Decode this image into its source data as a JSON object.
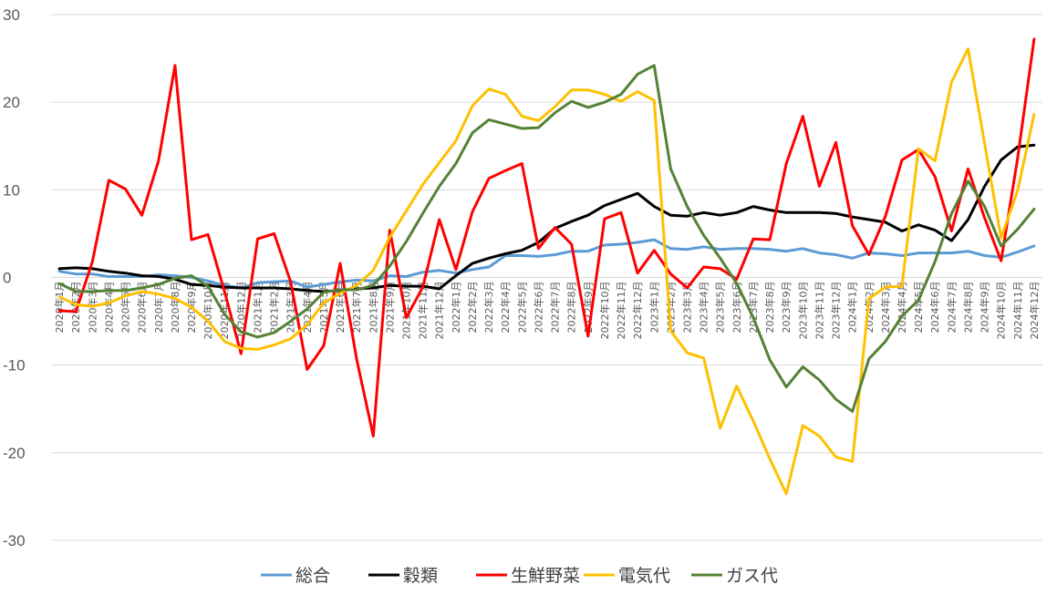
{
  "chart_data": {
    "type": "line",
    "title": "",
    "xlabel": "",
    "ylabel": "",
    "ylim": [
      -30,
      30
    ],
    "yticks": [
      30,
      20,
      10,
      0,
      -10,
      -20,
      -30
    ],
    "grid": "horizontal",
    "legend_position": "bottom",
    "categories": [
      "2020年1月",
      "2020年2月",
      "2020年3月",
      "2020年4月",
      "2020年5月",
      "2020年6月",
      "2020年7月",
      "2020年8月",
      "2020年9月",
      "2020年10月",
      "2020年11月",
      "2020年12月",
      "2021年1月",
      "2021年2月",
      "2021年3月",
      "2021年4月",
      "2021年5月",
      "2021年6月",
      "2021年7月",
      "2021年8月",
      "2021年9月",
      "2021年10月",
      "2021年11月",
      "2021年12月",
      "2022年1月",
      "2022年2月",
      "2022年3月",
      "2022年4月",
      "2022年5月",
      "2022年6月",
      "2022年7月",
      "2022年8月",
      "2022年9月",
      "2022年10月",
      "2022年11月",
      "2022年12月",
      "2023年1月",
      "2023年2月",
      "2023年3月",
      "2023年4月",
      "2023年5月",
      "2023年6月",
      "2023年7月",
      "2023年8月",
      "2023年9月",
      "2023年10月",
      "2023年11月",
      "2023年12月",
      "2024年1月",
      "2024年2月",
      "2024年3月",
      "2024年4月",
      "2024年5月",
      "2024年6月",
      "2024年7月",
      "2024年8月",
      "2024年9月",
      "2024年10月",
      "2024年11月",
      "2024年12月"
    ],
    "series": [
      {
        "name": "総合",
        "color": "#5b9bd5",
        "values": [
          0.7,
          0.4,
          0.4,
          0.1,
          0.1,
          0.1,
          0.3,
          0.2,
          0.0,
          -0.4,
          -0.9,
          -1.2,
          -0.6,
          -0.5,
          -0.4,
          -1.1,
          -0.8,
          -0.5,
          -0.3,
          -0.4,
          0.2,
          0.1,
          0.6,
          0.8,
          0.5,
          0.9,
          1.2,
          2.5,
          2.5,
          2.4,
          2.6,
          3.0,
          3.0,
          3.7,
          3.8,
          4.0,
          4.3,
          3.3,
          3.2,
          3.5,
          3.2,
          3.3,
          3.3,
          3.2,
          3.0,
          3.3,
          2.8,
          2.6,
          2.2,
          2.8,
          2.7,
          2.5,
          2.8,
          2.8,
          2.8,
          3.0,
          2.5,
          2.3,
          2.9,
          3.6
        ]
      },
      {
        "name": "穀類",
        "color": "#000000",
        "values": [
          1.0,
          1.1,
          1.0,
          0.7,
          0.5,
          0.2,
          0.1,
          -0.2,
          -0.8,
          -0.9,
          -1.1,
          -1.2,
          -1.2,
          -1.2,
          -1.3,
          -1.5,
          -1.6,
          -1.5,
          -1.3,
          -1.2,
          -0.9,
          -1.0,
          -1.0,
          -1.3,
          0.2,
          1.6,
          2.2,
          2.7,
          3.1,
          4.0,
          5.6,
          6.4,
          7.1,
          8.2,
          8.9,
          9.6,
          8.1,
          7.1,
          7.0,
          7.4,
          7.1,
          7.4,
          8.1,
          7.7,
          7.4,
          7.4,
          7.4,
          7.3,
          6.9,
          6.6,
          6.3,
          5.3,
          6.0,
          5.4,
          4.2,
          6.6,
          10.4,
          13.4,
          14.9,
          15.1
        ]
      },
      {
        "name": "生鮮野菜",
        "color": "#ff0000",
        "values": [
          -3.8,
          -3.9,
          1.8,
          11.1,
          10.1,
          7.1,
          13.3,
          24.2,
          4.3,
          4.9,
          -1.6,
          -8.7,
          4.4,
          5.0,
          -0.5,
          -10.5,
          -7.8,
          1.6,
          -9.4,
          -18.1,
          5.4,
          -4.6,
          -1.1,
          6.6,
          0.9,
          7.5,
          11.3,
          12.2,
          13.0,
          3.3,
          5.7,
          3.8,
          -6.7,
          6.7,
          7.4,
          0.5,
          3.1,
          0.4,
          -1.2,
          1.2,
          1.0,
          -0.2,
          4.4,
          4.3,
          13.0,
          18.4,
          10.4,
          15.4,
          5.9,
          2.6,
          7.0,
          13.4,
          14.6,
          11.5,
          5.3,
          12.4,
          6.8,
          1.9,
          13.6,
          27.2
        ]
      },
      {
        "name": "電気代",
        "color": "#ffc000",
        "values": [
          -2.2,
          -3.1,
          -3.3,
          -2.9,
          -2.1,
          -1.6,
          -1.9,
          -2.4,
          -3.4,
          -5.0,
          -7.3,
          -8.1,
          -8.2,
          -7.7,
          -7.0,
          -5.4,
          -2.9,
          -1.8,
          -0.9,
          0.8,
          4.6,
          7.6,
          10.6,
          13.1,
          15.6,
          19.6,
          21.5,
          20.9,
          18.4,
          17.9,
          19.5,
          21.4,
          21.4,
          20.9,
          20.1,
          21.2,
          20.2,
          -6.1,
          -8.6,
          -9.2,
          -17.2,
          -12.4,
          -16.4,
          -20.7,
          -24.7,
          -16.9,
          -18.1,
          -20.5,
          -21.0,
          -2.4,
          -1.1,
          -1.0,
          14.7,
          13.3,
          22.3,
          26.1,
          15.3,
          4.5,
          9.9,
          18.6
        ]
      },
      {
        "name": "ガス代",
        "color": "#548235",
        "values": [
          -0.7,
          -1.6,
          -1.6,
          -1.5,
          -1.5,
          -1.2,
          -0.8,
          -0.1,
          0.2,
          -1.0,
          -4.2,
          -6.2,
          -6.8,
          -6.3,
          -5.0,
          -3.6,
          -1.7,
          -1.4,
          -1.4,
          -0.9,
          1.3,
          4.1,
          7.3,
          10.4,
          13.0,
          16.5,
          18.0,
          17.5,
          17.0,
          17.1,
          18.8,
          20.1,
          19.4,
          20.0,
          20.9,
          23.2,
          24.2,
          12.4,
          8.1,
          4.8,
          2.2,
          -0.7,
          -4.6,
          -9.4,
          -12.5,
          -10.2,
          -11.7,
          -13.9,
          -15.3,
          -9.3,
          -7.3,
          -4.4,
          -2.6,
          1.8,
          7.3,
          11.0,
          8.1,
          3.6,
          5.5,
          7.8
        ]
      }
    ]
  }
}
